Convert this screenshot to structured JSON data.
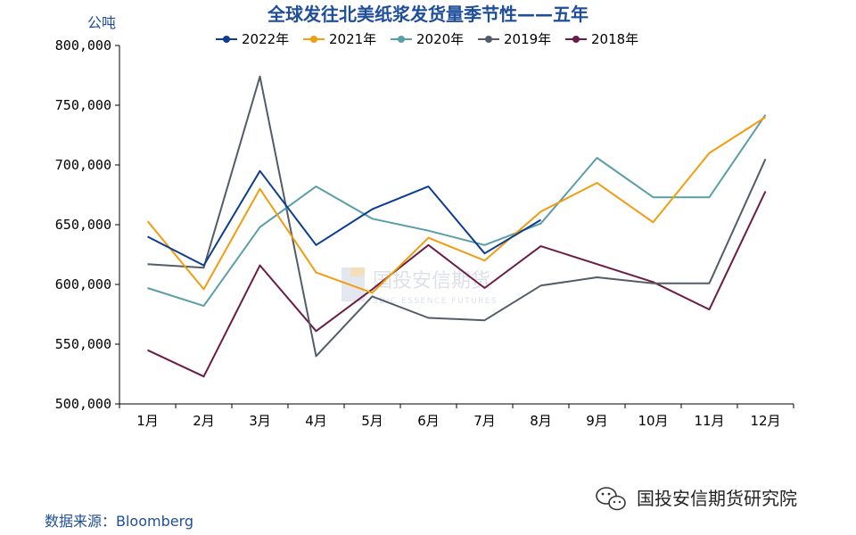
{
  "colors": {
    "title": "#1f4e9a",
    "unit": "#1f4e9a",
    "source": "#1f4e9a",
    "axis": "#000000",
    "watermark": "#d6dbe6"
  },
  "unit_label": "公吨",
  "source": "数据来源：Bloomberg",
  "brand": "国投安信期货研究院",
  "watermark": {
    "cn": "国投安信期货",
    "en": "SDIC ESSENCE FUTURES"
  },
  "chart_data": {
    "type": "line",
    "title": "全球发往北美纸浆发货量季节性——五年",
    "xlabel": "",
    "ylabel": "公吨",
    "ylim": [
      500000,
      800000
    ],
    "yticks": [
      500000,
      550000,
      600000,
      650000,
      700000,
      750000,
      800000
    ],
    "ytick_labels": [
      "500,000",
      "550,000",
      "600,000",
      "650,000",
      "700,000",
      "750,000",
      "800,000"
    ],
    "categories": [
      "1月",
      "2月",
      "3月",
      "4月",
      "5月",
      "6月",
      "7月",
      "8月",
      "9月",
      "10月",
      "11月",
      "12月"
    ],
    "legend_position": "top-center",
    "series": [
      {
        "name": "2022年",
        "color": "#0d3d91",
        "values": [
          640000,
          616000,
          695000,
          633000,
          663000,
          682000,
          626000,
          654000,
          null,
          null,
          null,
          null
        ]
      },
      {
        "name": "2021年",
        "color": "#f29c0f",
        "values": [
          653000,
          596000,
          680000,
          610000,
          593000,
          639000,
          620000,
          661000,
          685000,
          652000,
          710000,
          740000
        ]
      },
      {
        "name": "2020年",
        "color": "#5a9ea6",
        "values": [
          597000,
          582000,
          648000,
          682000,
          655000,
          645000,
          633000,
          651000,
          706000,
          673000,
          673000,
          742000
        ]
      },
      {
        "name": "2019年",
        "color": "#535c68",
        "values": [
          617000,
          614000,
          774000,
          540000,
          590000,
          572000,
          570000,
          599000,
          606000,
          601000,
          601000,
          705000
        ]
      },
      {
        "name": "2018年",
        "color": "#6a1d46",
        "values": [
          545000,
          523000,
          616000,
          561000,
          596000,
          633000,
          597000,
          632000,
          617000,
          602000,
          579000,
          678000
        ]
      }
    ]
  }
}
